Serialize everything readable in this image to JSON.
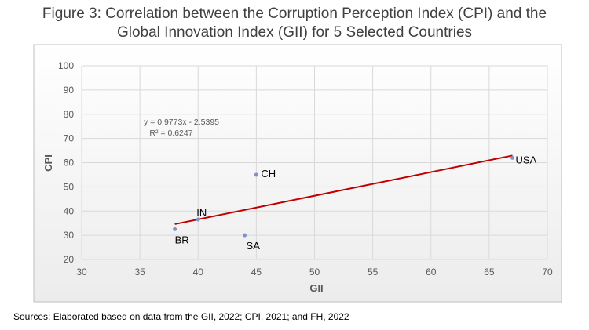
{
  "chart_data": {
    "type": "scatter",
    "title_line1": "Figure 3: Correlation between the Corruption Perception Index (CPI) and the",
    "title_line2": "Global Innovation Index (GII) for 5 Selected Countries",
    "xlabel": "GII",
    "ylabel": "CPI",
    "xlim": [
      30,
      70
    ],
    "ylim": [
      20,
      100
    ],
    "xticks": [
      30,
      35,
      40,
      45,
      50,
      55,
      60,
      65,
      70
    ],
    "yticks": [
      20,
      30,
      40,
      50,
      60,
      70,
      80,
      90,
      100
    ],
    "grid": true,
    "points": [
      {
        "label": "BR",
        "x": 38,
        "y": 32.5
      },
      {
        "label": "IN",
        "x": 40,
        "y": 36.5
      },
      {
        "label": "SA",
        "x": 44,
        "y": 30
      },
      {
        "label": "CH",
        "x": 45,
        "y": 55
      },
      {
        "label": "USA",
        "x": 67,
        "y": 62
      }
    ],
    "trendline": {
      "slope": 0.9773,
      "intercept": -2.5395,
      "x_range": [
        38,
        67
      ],
      "color": "#c00000",
      "equation": "y = 0.9773x - 2.5395",
      "r2": "R² = 0.6247"
    },
    "point_color": "#7f93c8"
  },
  "source": "Sources: Elaborated based on data from the GII, 2022; CPI, 2021; and FH, 2022"
}
